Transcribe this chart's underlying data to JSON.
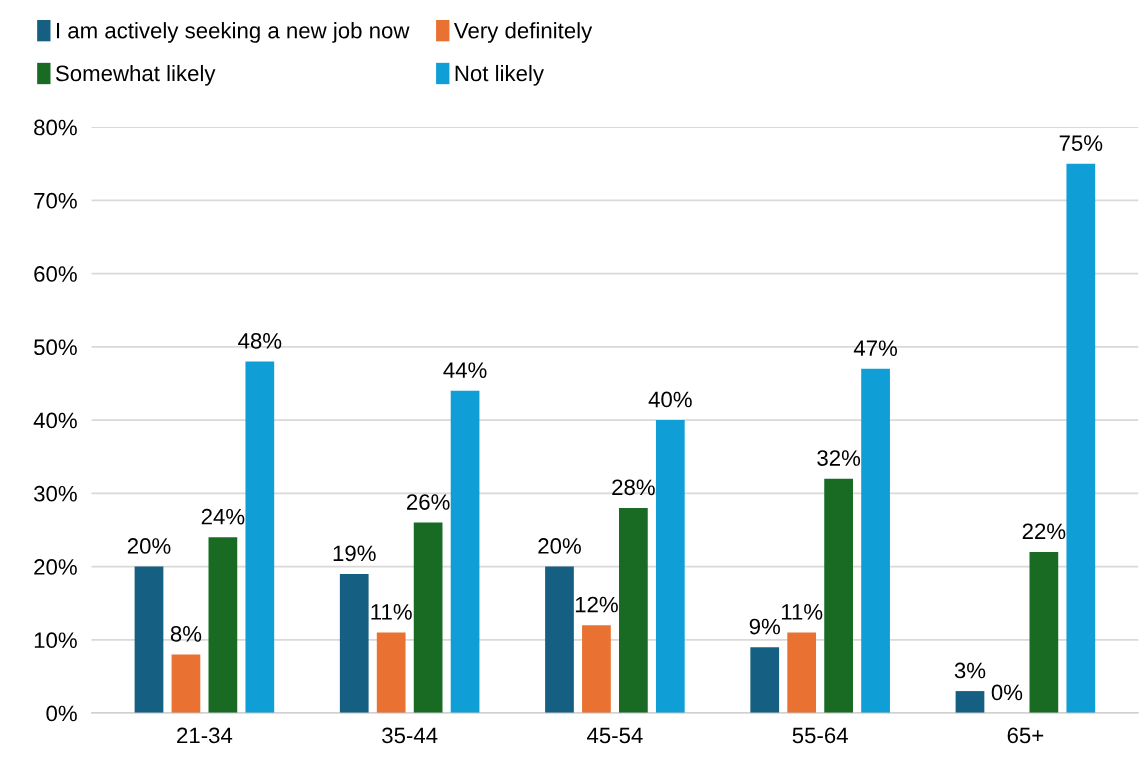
{
  "chart_data": {
    "type": "bar",
    "categories": [
      "21-34",
      "35-44",
      "45-54",
      "55-64",
      "65+"
    ],
    "series": [
      {
        "name": "I am actively seeking a new job now",
        "color": "#156082",
        "values": [
          20,
          19,
          20,
          9,
          3
        ],
        "value_labels": [
          "20%",
          "19%",
          "20%",
          "9%",
          "3%"
        ]
      },
      {
        "name": "Very definitely",
        "color": "#e97132",
        "values": [
          8,
          11,
          12,
          11,
          0
        ],
        "value_labels": [
          "8%",
          "11%",
          "12%",
          "11%",
          "0%"
        ]
      },
      {
        "name": "Somewhat likely",
        "color": "#196b24",
        "values": [
          24,
          26,
          28,
          32,
          22
        ],
        "value_labels": [
          "24%",
          "26%",
          "28%",
          "32%",
          "22%"
        ]
      },
      {
        "name": "Not likely",
        "color": "#0f9ed5",
        "values": [
          48,
          44,
          40,
          47,
          75
        ],
        "value_labels": [
          "48%",
          "44%",
          "40%",
          "47%",
          "75%"
        ]
      }
    ],
    "ylim": [
      0,
      80
    ],
    "yticks": [
      {
        "value": 0,
        "label": "0%"
      },
      {
        "value": 10,
        "label": "10%"
      },
      {
        "value": 20,
        "label": "20%"
      },
      {
        "value": 30,
        "label": "30%"
      },
      {
        "value": 40,
        "label": "40%"
      },
      {
        "value": 50,
        "label": "50%"
      },
      {
        "value": 60,
        "label": "60%"
      },
      {
        "value": 70,
        "label": "70%"
      },
      {
        "value": 80,
        "label": "80%"
      }
    ],
    "grid": "y",
    "legend": "top"
  }
}
